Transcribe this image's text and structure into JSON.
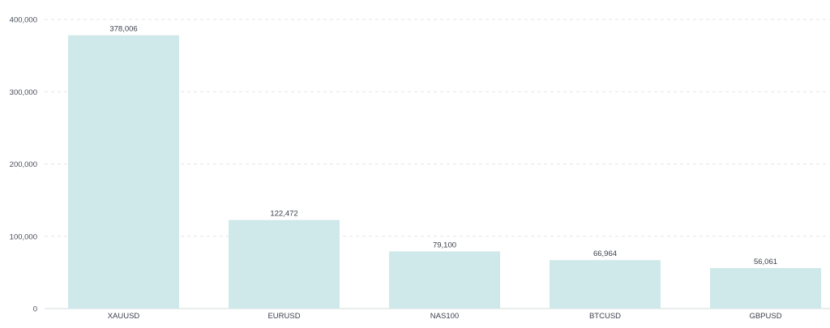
{
  "chart_data": {
    "type": "bar",
    "categories": [
      "XAUUSD",
      "EURUSD",
      "NAS100",
      "BTCUSD",
      "GBPUSD"
    ],
    "values": [
      378006,
      122472,
      79100,
      66964,
      56061
    ],
    "value_labels": [
      "378,006",
      "122,472",
      "79,100",
      "66,964",
      "56,061"
    ],
    "ylim": [
      0,
      400000
    ],
    "yticks": [
      0,
      100000,
      200000,
      300000,
      400000
    ],
    "ytick_labels": [
      "0",
      "100,000",
      "200,000",
      "300,000",
      "400,000"
    ],
    "grid": true,
    "legend": "none",
    "colors": {
      "bar": "#cfe8ea",
      "grid": "#e4e6ea",
      "text": "#3a3f4a"
    }
  }
}
